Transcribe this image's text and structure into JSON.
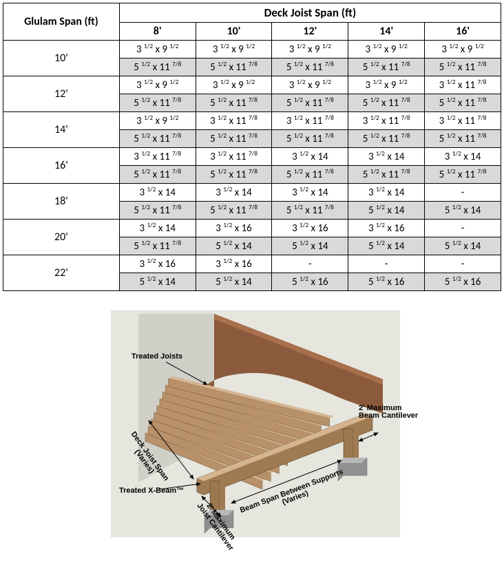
{
  "table": {
    "title": "Deck Joist Span (ft)",
    "rowHeaderTitle": "Glulam Span (ft)",
    "joistSpans": [
      "8'",
      "10'",
      "12'",
      "14'",
      "16'"
    ],
    "glulamSpans": [
      "10'",
      "12'",
      "14'",
      "16'",
      "18'",
      "20'",
      "22'"
    ],
    "colors": {
      "shaded": "#d9d9d9",
      "border": "#000000",
      "bg": "#ffffff"
    },
    "rows": [
      {
        "span": "10'",
        "top": [
          "3 1/2 x 9 1/2",
          "3 1/2 x 9 1/2",
          "3 1/2 x 9 1/2",
          "3 1/2 x 9 1/2",
          "3 1/2 x 9 1/2"
        ],
        "bot": [
          "5 1/2 x 11 7/8",
          "5 1/2 x 11 7/8",
          "5 1/2 x 11 7/8",
          "5 1/2 x 11 7/8",
          "5 1/2 x 11 7/8"
        ]
      },
      {
        "span": "12'",
        "top": [
          "3 1/2 x 9 1/2",
          "3 1/2 x 9 1/2",
          "3 1/2 x 9 1/2",
          "3 1/2 x 9 1/2",
          "3 1/2 x 11 7/8"
        ],
        "bot": [
          "5 1/2 x 11 7/8",
          "5 1/2 x 11 7/8",
          "5 1/2 x 11 7/8",
          "5 1/2 x 11 7/8",
          "5 1/2 x 11 7/8"
        ]
      },
      {
        "span": "14'",
        "top": [
          "3 1/2 x 9 1/2",
          "3 1/2 x 11 7/8",
          "3 1/2 x 11 7/8",
          "3 1/2 x 11 7/8",
          "3 1/2 x 11 7/8"
        ],
        "bot": [
          "5 1/2 x 11 7/8",
          "5 1/2 x 11 7/8",
          "5 1/2 x 11 7/8",
          "5 1/2 x 11 7/8",
          "5 1/2 x 11 7/8"
        ]
      },
      {
        "span": "16'",
        "top": [
          "3 1/2 x 11 7/8",
          "3 1/2 x 11 7/8",
          "3 1/2 x 14",
          "3 1/2 x 14",
          "3 1/2 x 14"
        ],
        "bot": [
          "5 1/2 x 11 7/8",
          "5 1/2 x 11 7/8",
          "5 1/2 x 11 7/8",
          "5 1/2 x 11 7/8",
          "5 1/2 x 11 7/8"
        ]
      },
      {
        "span": "18'",
        "top": [
          "3 1/2 x 14",
          "3 1/2 x 14",
          "3 1/2 x 14",
          "3 1/2 x 14",
          "-"
        ],
        "bot": [
          "5 1/2 x 11 7/8",
          "5 1/2 x 11 7/8",
          "5 1/2 x 11 7/8",
          "5 1/2 x 14",
          "5 1/2 x 14"
        ]
      },
      {
        "span": "20'",
        "top": [
          "3 1/2 x 14",
          "3 1/2 x 16",
          "3 1/2 x 16",
          "3 1/2 x 16",
          "-"
        ],
        "bot": [
          "5 1/2 x 11 7/8",
          "5 1/2 x 14",
          "5 1/2 x 14",
          "5 1/2 x 14",
          "5 1/2 x 14"
        ]
      },
      {
        "span": "22'",
        "top": [
          "3 1/2 x 16",
          "3 1/2 x 16",
          "-",
          "-",
          "-"
        ],
        "bot": [
          "5 1/2 x 14",
          "5 1/2 x 14",
          "5 1/2 x 16",
          "5 1/2 x 16",
          "5 1/2 x 16"
        ]
      }
    ]
  },
  "diagram": {
    "labels": {
      "treatedJoists": "Treated Joists",
      "deckJoistSpan1": "Deck Joist Span",
      "deckJoistSpan2": "(Varies)",
      "treatedXBeam": "Treated X-Beam™",
      "joistCant1": "2' Maximum",
      "joistCant2": "Joist Cantilever",
      "beamSpan1": "Beam Span Between Supports",
      "beamSpan2": "(Varies)",
      "beamCant1": "2' Maximum",
      "beamCant2": "Beam Cantilever"
    },
    "colors": {
      "bg": "#e6e6de",
      "wall": "#d0d0c8",
      "joist": "#b8916a",
      "joistTop": "#d5b590",
      "beam": "#a07a52",
      "deck": "#8b5a3c",
      "deckLight": "#a86f4c",
      "post": "#9c7850",
      "footing": "#909090",
      "line": "#000000"
    }
  }
}
